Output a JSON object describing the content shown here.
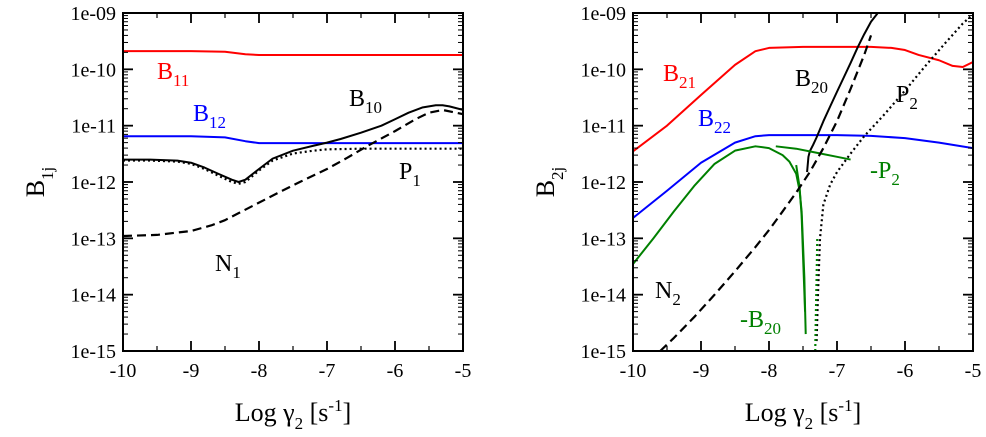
{
  "chart_data": [
    {
      "type": "line",
      "xscale": "linear",
      "yscale": "log",
      "xlim": [
        -10,
        -5
      ],
      "ylim": [
        1e-15,
        1e-09
      ],
      "x_ticks": [
        -10,
        -9,
        -8,
        -7,
        -6,
        -5
      ],
      "x_tick_labels": [
        "-10",
        "-9",
        "-8",
        "-7",
        "-6",
        "-5"
      ],
      "y_ticks": [
        1e-15,
        1e-14,
        1e-13,
        1e-12,
        1e-11,
        1e-10,
        1e-09
      ],
      "y_tick_labels": [
        "1e-15",
        "1e-14",
        "1e-13",
        "1e-12",
        "1e-11",
        "1e-10",
        "1e-09"
      ],
      "xlabel": "Log γ",
      "xlabel_sub": "2",
      "xlabel_unit_open": " [s",
      "xlabel_unit_sup": "-1",
      "xlabel_unit_close": "]",
      "ylabel": "B",
      "ylabel_sub": "1j",
      "series": [
        {
          "name": "B11",
          "label": "B",
          "label_sub": "11",
          "color": "#ff0000",
          "style": "solid",
          "x": [
            -10,
            -9.5,
            -9,
            -8.5,
            -8.2,
            -8,
            -7.5,
            -7,
            -6,
            -5
          ],
          "y": [
            2.1e-10,
            2.1e-10,
            2.1e-10,
            2.05e-10,
            1.85e-10,
            1.8e-10,
            1.8e-10,
            1.8e-10,
            1.8e-10,
            1.8e-10
          ]
        },
        {
          "name": "B12",
          "label": "B",
          "label_sub": "12",
          "color": "#0000ff",
          "style": "solid",
          "x": [
            -10,
            -9.5,
            -9,
            -8.5,
            -8.2,
            -8,
            -7.5,
            -7,
            -6,
            -5
          ],
          "y": [
            6.5e-12,
            6.5e-12,
            6.5e-12,
            6.2e-12,
            5.3e-12,
            4.9e-12,
            4.9e-12,
            4.9e-12,
            4.9e-12,
            4.9e-12
          ]
        },
        {
          "name": "B10",
          "label": "B",
          "label_sub": "10",
          "color": "#000000",
          "style": "solid",
          "x": [
            -10,
            -9.6,
            -9.2,
            -9,
            -8.8,
            -8.6,
            -8.4,
            -8.3,
            -8.2,
            -8,
            -7.8,
            -7.5,
            -7.2,
            -7,
            -6.8,
            -6.5,
            -6.2,
            -6,
            -5.8,
            -5.6,
            -5.4,
            -5.3,
            -5.2,
            -5
          ],
          "y": [
            2.5e-12,
            2.5e-12,
            2.4e-12,
            2.2e-12,
            1.8e-12,
            1.4e-12,
            1.1e-12,
            1e-12,
            1.1e-12,
            1.7e-12,
            2.6e-12,
            3.6e-12,
            4.4e-12,
            5e-12,
            5.8e-12,
            7.5e-12,
            1e-11,
            1.3e-11,
            1.7e-11,
            2.1e-11,
            2.3e-11,
            2.3e-11,
            2.2e-11,
            1.9e-11
          ]
        },
        {
          "name": "P1",
          "label": "P",
          "label_sub": "1",
          "color": "#000000",
          "style": "dotted",
          "x": [
            -10,
            -9.6,
            -9.2,
            -9,
            -8.8,
            -8.6,
            -8.4,
            -8.3,
            -8.2,
            -8,
            -7.8,
            -7.5,
            -7.2,
            -7,
            -6.5,
            -6,
            -5.5,
            -5
          ],
          "y": [
            2.4e-12,
            2.4e-12,
            2.3e-12,
            2.1e-12,
            1.7e-12,
            1.3e-12,
            1e-12,
            9.3e-13,
            1e-12,
            1.6e-12,
            2.4e-12,
            3.2e-12,
            3.6e-12,
            3.8e-12,
            3.9e-12,
            3.9e-12,
            3.9e-12,
            3.9e-12
          ]
        },
        {
          "name": "N1",
          "label": "N",
          "label_sub": "1",
          "color": "#000000",
          "style": "dashed",
          "x": [
            -10,
            -9.5,
            -9,
            -8.7,
            -8.5,
            -8.3,
            -8,
            -7.7,
            -7.4,
            -7,
            -6.7,
            -6.4,
            -6,
            -5.7,
            -5.5,
            -5.3,
            -5
          ],
          "y": [
            1.1e-13,
            1.15e-13,
            1.35e-13,
            1.7e-13,
            2.1e-13,
            2.8e-13,
            4.3e-13,
            6.6e-13,
            1e-12,
            1.7e-12,
            2.7e-12,
            4.4e-12,
            8e-12,
            1.3e-11,
            1.7e-11,
            1.9e-11,
            1.6e-11
          ]
        }
      ]
    },
    {
      "type": "line",
      "xscale": "linear",
      "yscale": "log",
      "xlim": [
        -10,
        -5
      ],
      "ylim": [
        1e-15,
        1e-09
      ],
      "x_ticks": [
        -10,
        -9,
        -8,
        -7,
        -6,
        -5
      ],
      "x_tick_labels": [
        "-10",
        "-9",
        "-8",
        "-7",
        "-6",
        "-5"
      ],
      "y_ticks": [
        1e-15,
        1e-14,
        1e-13,
        1e-12,
        1e-11,
        1e-10,
        1e-09
      ],
      "y_tick_labels": [
        "1e-15",
        "1e-14",
        "1e-13",
        "1e-12",
        "1e-11",
        "1e-10",
        "1e-09"
      ],
      "xlabel": "Log γ",
      "xlabel_sub": "2",
      "xlabel_unit_open": " [s",
      "xlabel_unit_sup": "-1",
      "xlabel_unit_close": "]",
      "ylabel": "B",
      "ylabel_sub": "2j",
      "series": [
        {
          "name": "B21",
          "label": "B",
          "label_sub": "21",
          "color": "#ff0000",
          "style": "solid",
          "x": [
            -10,
            -9.5,
            -9,
            -8.5,
            -8.2,
            -8,
            -7.5,
            -7,
            -6.5,
            -6.2,
            -6,
            -5.8,
            -5.5,
            -5.3,
            -5.15,
            -5
          ],
          "y": [
            3.5e-12,
            1e-11,
            3.5e-11,
            1.2e-10,
            2.1e-10,
            2.4e-10,
            2.5e-10,
            2.5e-10,
            2.5e-10,
            2.4e-10,
            2.2e-10,
            1.8e-10,
            1.45e-10,
            1.15e-10,
            1.1e-10,
            1.35e-10
          ]
        },
        {
          "name": "B22",
          "label": "B",
          "label_sub": "22",
          "color": "#0000ff",
          "style": "solid",
          "x": [
            -10,
            -9.5,
            -9,
            -8.5,
            -8.2,
            -8,
            -7.5,
            -7,
            -6.5,
            -6,
            -5.5,
            -5
          ],
          "y": [
            2.3e-13,
            7e-13,
            2.2e-12,
            5e-12,
            6.5e-12,
            6.8e-12,
            6.8e-12,
            6.8e-12,
            6.6e-12,
            6e-12,
            5e-12,
            4e-12
          ]
        },
        {
          "name": "B20",
          "label": "B",
          "label_sub": "20",
          "color": "#000000",
          "style": "solid",
          "x": [
            -7.44,
            -7.42,
            -7.4,
            -7.35,
            -7.3,
            -7.2,
            -7.1,
            -7.0,
            -6.9,
            -6.8,
            -6.7,
            -6.6,
            -6.5,
            -6.4
          ],
          "y": [
            1.5e-12,
            2.8e-12,
            3.5e-12,
            4.6e-12,
            6.2e-12,
            1.2e-11,
            2.2e-11,
            4e-11,
            7.2e-11,
            1.3e-10,
            2.4e-10,
            4.2e-10,
            7e-10,
            1e-09
          ]
        },
        {
          "name": "-B20",
          "label": "-B",
          "label_sub": "20",
          "color": "#008000",
          "style": "solid",
          "x": [
            -7.6,
            -7.55,
            -7.52,
            -7.5,
            -7.48,
            -7.47
          ],
          "y": [
            2e-12,
            8e-13,
            2.5e-13,
            5e-14,
            1.1e-14,
            5e-15
          ]
        },
        {
          "name": "-P2",
          "label": "-P",
          "label_sub": "2",
          "color": "#008000",
          "style": "solid",
          "x": [
            -10,
            -9.7,
            -9.4,
            -9.1,
            -8.8,
            -8.5,
            -8.2,
            -8.0,
            -7.8,
            -7.7,
            -7.6,
            -7.55,
            -7.52,
            -7.5,
            -7.48,
            -7.47,
            -7.46
          ],
          "y": [
            3.5e-14,
            1e-13,
            3e-13,
            8.5e-13,
            2.1e-12,
            3.6e-12,
            4.3e-12,
            4e-12,
            3e-12,
            2.3e-12,
            1.4e-12,
            7e-13,
            3e-13,
            8e-14,
            2e-14,
            6e-15,
            2e-15
          ]
        },
        {
          "name": "-P2 (branch)",
          "label": "",
          "color": "#008000",
          "style": "solid",
          "x": [
            -7.9,
            -7.6,
            -7.3,
            -7.0,
            -6.8
          ],
          "y": [
            4.3e-12,
            3.9e-12,
            3.3e-12,
            2.8e-12,
            2.5e-12
          ]
        },
        {
          "name": "P2",
          "label": "P",
          "label_sub": "2",
          "color": "#000000",
          "style": "dotted",
          "x": [
            -7.3,
            -7.28,
            -7.25,
            -7.2,
            -7.1,
            -7.0,
            -6.8,
            -6.6,
            -6.3,
            -6.0,
            -5.7,
            -5.4,
            -5.15,
            -5.0
          ],
          "y": [
            1.5e-15,
            1e-14,
            1e-13,
            4e-13,
            9e-13,
            1.5e-12,
            3.2e-12,
            6.5e-12,
            1.6e-11,
            4.2e-11,
            1.15e-10,
            3e-10,
            6.5e-10,
            9.5e-10
          ]
        },
        {
          "name": "-B20 dotted",
          "label": "",
          "color": "#008000",
          "style": "dotted",
          "x": [
            -7.32,
            -7.31,
            -7.3,
            -7.29
          ],
          "y": [
            1e-15,
            5e-15,
            2e-14,
            1e-13
          ]
        },
        {
          "name": "N2",
          "label": "N",
          "label_sub": "2",
          "color": "#000000",
          "style": "dashed",
          "x": [
            -9.6,
            -9.4,
            -9.1,
            -8.8,
            -8.5,
            -8.2,
            -8.0,
            -7.8,
            -7.6,
            -7.4,
            -7.2,
            -7.0,
            -6.8,
            -6.6,
            -6.5
          ],
          "y": [
            1e-15,
            1.7e-15,
            4e-15,
            1e-14,
            2.6e-14,
            7e-14,
            1.4e-13,
            3e-13,
            6.5e-13,
            1.5e-12,
            4e-12,
            1.2e-11,
            4.5e-11,
            1.8e-10,
            4e-10
          ]
        }
      ]
    }
  ]
}
